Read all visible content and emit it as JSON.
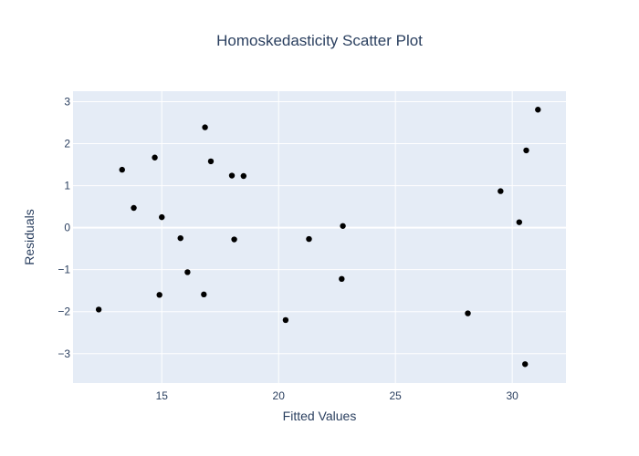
{
  "chart_data": {
    "type": "scatter",
    "title": "Homoskedasticity Scatter Plot",
    "xlabel": "Fitted Values",
    "ylabel": "Residuals",
    "xlim": [
      11.2,
      32.3
    ],
    "ylim": [
      -3.7,
      3.25
    ],
    "x_ticks": [
      15,
      20,
      25,
      30
    ],
    "y_ticks": [
      -3,
      -2,
      -1,
      0,
      1,
      2,
      3
    ],
    "x_tick_labels": [
      "15",
      "20",
      "25",
      "30"
    ],
    "y_tick_labels": [
      "−3",
      "−2",
      "−1",
      "0",
      "1",
      "2",
      "3"
    ],
    "grid": true,
    "marker_color": "#000000",
    "plot_bg": "#e5ecf6",
    "grid_color": "#ffffff",
    "x": [
      12.3,
      13.3,
      13.8,
      14.7,
      14.9,
      15.0,
      15.8,
      16.1,
      16.8,
      16.85,
      17.1,
      18.0,
      18.1,
      18.5,
      20.3,
      21.3,
      22.7,
      22.75,
      28.1,
      29.5,
      30.3,
      30.55,
      30.6,
      31.1
    ],
    "y": [
      -1.95,
      1.38,
      0.47,
      1.67,
      -1.6,
      0.25,
      -0.25,
      -1.06,
      -1.59,
      2.39,
      1.58,
      1.24,
      -0.28,
      1.23,
      -2.2,
      -0.27,
      -1.22,
      0.04,
      -2.04,
      0.87,
      0.13,
      -3.25,
      1.84,
      2.81
    ]
  }
}
